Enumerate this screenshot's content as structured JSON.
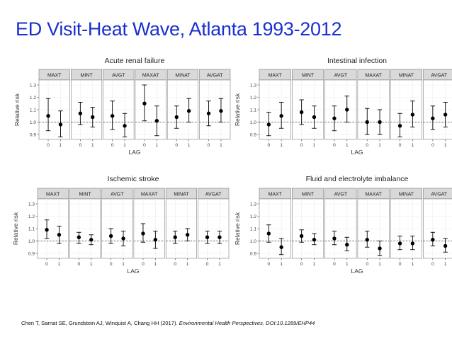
{
  "slide": {
    "title": "ED Visit-Heat Wave, Atlanta 1993-2012",
    "citation_authors": "Chen T, Sarnat SE, Grundstein AJ, Winquist A, Chang HH (2017).",
    "citation_journal": "Environmental Health Perspectives. DOI:10.1289/EHP44"
  },
  "colors": {
    "title": "#1a2fd0",
    "facet_strip": "#d9d9d9",
    "panel_border": "#7f7f7f",
    "grid": "#ebebeb",
    "point": "#000000",
    "dashed_line": "#444444"
  },
  "chart_data": [
    {
      "type": "scatter",
      "subtype": "point-range",
      "title": "Acute renal failure",
      "xlabel": "LAG",
      "ylabel": "Relative risk",
      "facets": [
        "MAXT",
        "MINT",
        "AVGT",
        "MAXAT",
        "MINAT",
        "AVGAT"
      ],
      "x_ticks": [
        "0",
        "1"
      ],
      "y_ticks": [
        "0.9",
        "1.0",
        "1.1",
        "1.2",
        "1.3"
      ],
      "ylim": [
        0.86,
        1.34
      ],
      "reference_line": 1.0,
      "points": [
        {
          "facet": "MAXT",
          "lag": "0",
          "estimate": 1.05,
          "lower": 0.93,
          "upper": 1.19
        },
        {
          "facet": "MAXT",
          "lag": "1",
          "estimate": 0.98,
          "lower": 0.88,
          "upper": 1.09
        },
        {
          "facet": "MINT",
          "lag": "0",
          "estimate": 1.07,
          "lower": 0.98,
          "upper": 1.16
        },
        {
          "facet": "MINT",
          "lag": "1",
          "estimate": 1.04,
          "lower": 0.96,
          "upper": 1.12
        },
        {
          "facet": "AVGT",
          "lag": "0",
          "estimate": 1.05,
          "lower": 0.94,
          "upper": 1.17
        },
        {
          "facet": "AVGT",
          "lag": "1",
          "estimate": 0.97,
          "lower": 0.88,
          "upper": 1.07
        },
        {
          "facet": "MAXAT",
          "lag": "0",
          "estimate": 1.15,
          "lower": 1.01,
          "upper": 1.3
        },
        {
          "facet": "MAXAT",
          "lag": "1",
          "estimate": 1.01,
          "lower": 0.89,
          "upper": 1.13
        },
        {
          "facet": "MINAT",
          "lag": "0",
          "estimate": 1.04,
          "lower": 0.95,
          "upper": 1.13
        },
        {
          "facet": "MINAT",
          "lag": "1",
          "estimate": 1.09,
          "lower": 1.0,
          "upper": 1.19
        },
        {
          "facet": "AVGAT",
          "lag": "0",
          "estimate": 1.07,
          "lower": 0.97,
          "upper": 1.17
        },
        {
          "facet": "AVGAT",
          "lag": "1",
          "estimate": 1.09,
          "lower": 1.0,
          "upper": 1.19
        }
      ]
    },
    {
      "type": "scatter",
      "subtype": "point-range",
      "title": "Intestinal infection",
      "xlabel": "LAG",
      "ylabel": "Relative risk",
      "facets": [
        "MAXT",
        "MINT",
        "AVGT",
        "MAXAT",
        "MINAT",
        "AVGAT"
      ],
      "x_ticks": [
        "0",
        "1"
      ],
      "y_ticks": [
        "0.9",
        "1.0",
        "1.1",
        "1.2",
        "1.3"
      ],
      "ylim": [
        0.86,
        1.34
      ],
      "reference_line": 1.0,
      "points": [
        {
          "facet": "MAXT",
          "lag": "0",
          "estimate": 0.98,
          "lower": 0.89,
          "upper": 1.08
        },
        {
          "facet": "MAXT",
          "lag": "1",
          "estimate": 1.05,
          "lower": 0.95,
          "upper": 1.16
        },
        {
          "facet": "MINT",
          "lag": "0",
          "estimate": 1.08,
          "lower": 0.98,
          "upper": 1.18
        },
        {
          "facet": "MINT",
          "lag": "1",
          "estimate": 1.04,
          "lower": 0.95,
          "upper": 1.13
        },
        {
          "facet": "AVGT",
          "lag": "0",
          "estimate": 1.03,
          "lower": 0.93,
          "upper": 1.13
        },
        {
          "facet": "AVGT",
          "lag": "1",
          "estimate": 1.1,
          "lower": 1.0,
          "upper": 1.21
        },
        {
          "facet": "MAXAT",
          "lag": "0",
          "estimate": 1.0,
          "lower": 0.9,
          "upper": 1.11
        },
        {
          "facet": "MAXAT",
          "lag": "1",
          "estimate": 1.0,
          "lower": 0.9,
          "upper": 1.1
        },
        {
          "facet": "MINAT",
          "lag": "0",
          "estimate": 0.97,
          "lower": 0.88,
          "upper": 1.07
        },
        {
          "facet": "MINAT",
          "lag": "1",
          "estimate": 1.06,
          "lower": 0.96,
          "upper": 1.17
        },
        {
          "facet": "AVGAT",
          "lag": "0",
          "estimate": 1.03,
          "lower": 0.94,
          "upper": 1.13
        },
        {
          "facet": "AVGAT",
          "lag": "1",
          "estimate": 1.06,
          "lower": 0.96,
          "upper": 1.16
        }
      ]
    },
    {
      "type": "scatter",
      "subtype": "point-range",
      "title": "Ischemic stroke",
      "xlabel": "LAG",
      "ylabel": "Relative risk",
      "facets": [
        "MAXT",
        "MINT",
        "AVGT",
        "MAXAT",
        "MINAT",
        "AVGAT"
      ],
      "x_ticks": [
        "0",
        "1"
      ],
      "y_ticks": [
        "0.9",
        "1.0",
        "1.1",
        "1.2",
        "1.3"
      ],
      "ylim": [
        0.86,
        1.34
      ],
      "reference_line": 1.0,
      "points": [
        {
          "facet": "MAXT",
          "lag": "0",
          "estimate": 1.09,
          "lower": 1.02,
          "upper": 1.17
        },
        {
          "facet": "MAXT",
          "lag": "1",
          "estimate": 1.05,
          "lower": 0.98,
          "upper": 1.12
        },
        {
          "facet": "MINT",
          "lag": "0",
          "estimate": 1.03,
          "lower": 0.98,
          "upper": 1.07
        },
        {
          "facet": "MINT",
          "lag": "1",
          "estimate": 1.01,
          "lower": 0.97,
          "upper": 1.05
        },
        {
          "facet": "AVGT",
          "lag": "0",
          "estimate": 1.04,
          "lower": 0.98,
          "upper": 1.1
        },
        {
          "facet": "AVGT",
          "lag": "1",
          "estimate": 1.02,
          "lower": 0.96,
          "upper": 1.08
        },
        {
          "facet": "MAXAT",
          "lag": "0",
          "estimate": 1.06,
          "lower": 0.99,
          "upper": 1.14
        },
        {
          "facet": "MAXAT",
          "lag": "1",
          "estimate": 1.01,
          "lower": 0.94,
          "upper": 1.08
        },
        {
          "facet": "MINAT",
          "lag": "0",
          "estimate": 1.03,
          "lower": 0.98,
          "upper": 1.08
        },
        {
          "facet": "MINAT",
          "lag": "1",
          "estimate": 1.05,
          "lower": 1.0,
          "upper": 1.1
        },
        {
          "facet": "AVGAT",
          "lag": "0",
          "estimate": 1.03,
          "lower": 0.98,
          "upper": 1.08
        },
        {
          "facet": "AVGAT",
          "lag": "1",
          "estimate": 1.03,
          "lower": 0.98,
          "upper": 1.08
        }
      ]
    },
    {
      "type": "scatter",
      "subtype": "point-range",
      "title": "Fluid and electrolyte imbalance",
      "xlabel": "LAG",
      "ylabel": "Relative risk",
      "facets": [
        "MAXT",
        "MINT",
        "AVGT",
        "MAXAT",
        "MINAT",
        "AVGAT"
      ],
      "x_ticks": [
        "0",
        "1"
      ],
      "y_ticks": [
        "0.9",
        "1.0",
        "1.1",
        "1.2",
        "1.3"
      ],
      "ylim": [
        0.86,
        1.34
      ],
      "reference_line": 1.0,
      "points": [
        {
          "facet": "MAXT",
          "lag": "0",
          "estimate": 1.06,
          "lower": 0.99,
          "upper": 1.13
        },
        {
          "facet": "MAXT",
          "lag": "1",
          "estimate": 0.95,
          "lower": 0.89,
          "upper": 1.02
        },
        {
          "facet": "MINT",
          "lag": "0",
          "estimate": 1.04,
          "lower": 0.99,
          "upper": 1.09
        },
        {
          "facet": "MINT",
          "lag": "1",
          "estimate": 1.01,
          "lower": 0.97,
          "upper": 1.06
        },
        {
          "facet": "AVGT",
          "lag": "0",
          "estimate": 1.02,
          "lower": 0.97,
          "upper": 1.08
        },
        {
          "facet": "AVGT",
          "lag": "1",
          "estimate": 0.97,
          "lower": 0.92,
          "upper": 1.03
        },
        {
          "facet": "MAXAT",
          "lag": "0",
          "estimate": 1.01,
          "lower": 0.95,
          "upper": 1.08
        },
        {
          "facet": "MAXAT",
          "lag": "1",
          "estimate": 0.94,
          "lower": 0.88,
          "upper": 1.0
        },
        {
          "facet": "MINAT",
          "lag": "0",
          "estimate": 0.98,
          "lower": 0.93,
          "upper": 1.04
        },
        {
          "facet": "MINAT",
          "lag": "1",
          "estimate": 0.98,
          "lower": 0.93,
          "upper": 1.04
        },
        {
          "facet": "AVGAT",
          "lag": "0",
          "estimate": 1.01,
          "lower": 0.96,
          "upper": 1.07
        },
        {
          "facet": "AVGAT",
          "lag": "1",
          "estimate": 0.96,
          "lower": 0.91,
          "upper": 1.02
        }
      ]
    }
  ]
}
